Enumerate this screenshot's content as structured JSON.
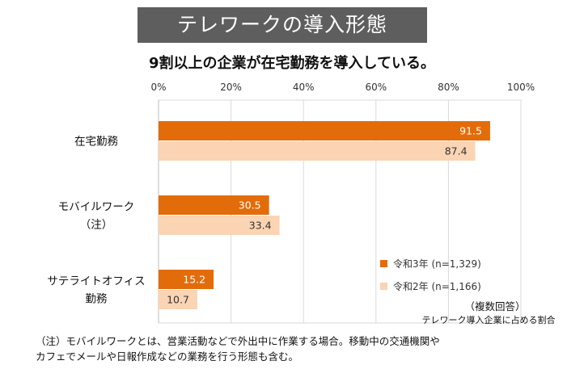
{
  "header": {
    "banner_title": "テレワークの導入形態",
    "headline": "9割以上の企業が在宅勤務を導入している。"
  },
  "footnote": {
    "line1": "（注）モバイルワークとは、営業活動などで外出中に作業する場合。移動中の交通機関や",
    "line2": "カフェでメールや日報作成などの業務を行う形態も含む。"
  },
  "chart_data": {
    "type": "bar",
    "orientation": "horizontal",
    "xlim": [
      0,
      100
    ],
    "x_ticks": [
      "0%",
      "20%",
      "40%",
      "60%",
      "80%",
      "100%"
    ],
    "grid": true,
    "legend_position": "lower-right",
    "categories": [
      {
        "lines": [
          "在宅勤務"
        ]
      },
      {
        "lines": [
          "モバイルワーク",
          "（注）"
        ]
      },
      {
        "lines": [
          "サテライトオフィス",
          "勤務"
        ]
      }
    ],
    "series": [
      {
        "name": "令和3年 (n=1,329)",
        "color": "#e36c0a",
        "label_color": "#ffffff",
        "values": [
          91.5,
          30.5,
          15.2
        ]
      },
      {
        "name": "令和2年 (n=1,166)",
        "color": "#fbd4b4",
        "label_color": "#333333",
        "values": [
          87.4,
          33.4,
          10.7
        ]
      }
    ],
    "annotation": {
      "line1": "（複数回答）",
      "line2": "テレワーク導入企業に占める割合"
    }
  }
}
